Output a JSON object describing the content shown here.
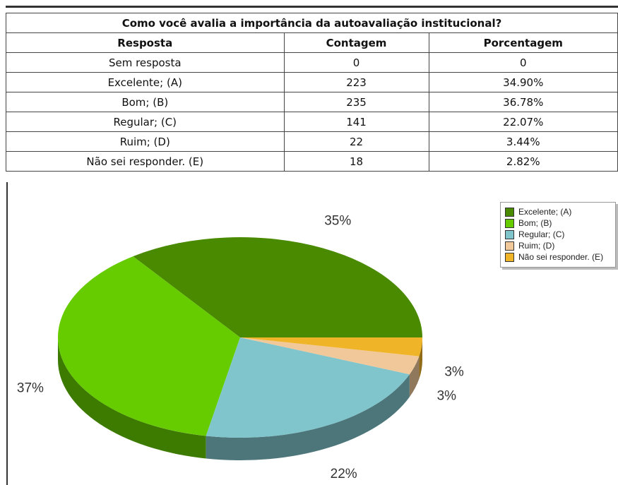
{
  "table": {
    "title": "Como você avalia a importância da autoavaliação institucional?",
    "header": [
      "Resposta",
      "Contagem",
      "Porcentagem"
    ],
    "rows": [
      [
        "Sem resposta",
        "0",
        "0"
      ],
      [
        "Excelente; (A)",
        "223",
        "34.90%"
      ],
      [
        "Bom; (B)",
        "235",
        "36.78%"
      ],
      [
        "Regular; (C)",
        "141",
        "22.07%"
      ],
      [
        "Ruim; (D)",
        "22",
        "3.44%"
      ],
      [
        "Não sei responder. (E)",
        "18",
        "2.82%"
      ]
    ]
  },
  "chart_data": {
    "type": "pie",
    "categories": [
      "Excelente; (A)",
      "Bom; (B)",
      "Regular; (C)",
      "Ruim; (D)",
      "Não sei responder. (E)"
    ],
    "values": [
      35,
      37,
      22,
      3,
      3
    ],
    "value_labels": [
      "35%",
      "37%",
      "22%",
      "3%",
      "3%"
    ],
    "colors": [
      "#4a8a00",
      "#66cc00",
      "#80c4cc",
      "#f0c89a",
      "#f0b428"
    ],
    "legend": "upper right"
  }
}
